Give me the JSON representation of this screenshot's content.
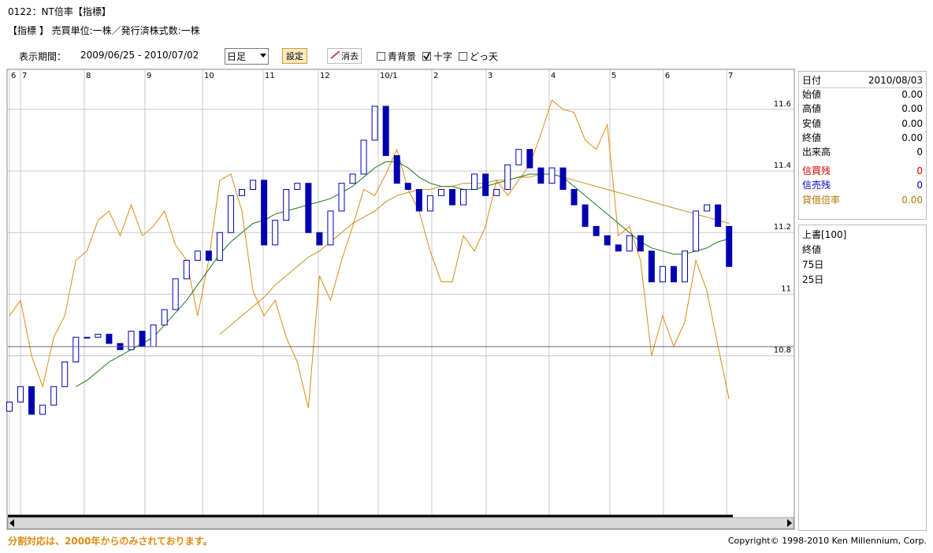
{
  "header": {
    "title": "0122：NT倍率【指標】",
    "info": "【指標 】 売買単位:一株／発行済株式数:一株"
  },
  "toolbar": {
    "period_label": "表示期間：",
    "period": "2009/06/25 - 2010/07/02",
    "interval": "日足",
    "set_button": "設定",
    "clear_button": "消去",
    "options": [
      {
        "label": "青背景",
        "checked": false
      },
      {
        "label": "十字",
        "checked": true
      },
      {
        "label": "どっ天",
        "checked": false
      }
    ]
  },
  "chart_data": {
    "type": "candlestick",
    "xlim": [
      -0.14,
      70.82
    ],
    "xticks": [
      {
        "value": 0,
        "label": "6"
      },
      {
        "value": 1,
        "label": "7"
      },
      {
        "value": 6.76,
        "label": "8"
      },
      {
        "value": 12.24,
        "label": "9"
      },
      {
        "value": 17.44,
        "label": "10"
      },
      {
        "value": 22.92,
        "label": "11"
      },
      {
        "value": 27.9,
        "label": "12"
      },
      {
        "value": 33.31,
        "label": "10/1"
      },
      {
        "value": 38.15,
        "label": "2"
      },
      {
        "value": 43.06,
        "label": "3"
      },
      {
        "value": 48.75,
        "label": "4"
      },
      {
        "value": 54.23,
        "label": "5"
      },
      {
        "value": 59.07,
        "label": "6"
      },
      {
        "value": 64.77,
        "label": "7"
      }
    ],
    "ylim": [
      10.28,
      11.73
    ],
    "yticks": [
      10.8,
      11,
      11.2,
      11.4,
      11.6
    ],
    "grid": true,
    "candles": {
      "name": "終値",
      "up_color": "#ffffff",
      "down_color": "#0000b0",
      "edge_color": "#0000b0",
      "open": [
        10.62,
        10.65,
        10.7,
        10.61,
        10.64,
        10.7,
        10.78,
        10.86,
        10.86,
        10.87,
        10.84,
        10.82,
        10.88,
        10.83,
        10.9,
        10.95,
        11.05,
        11.11,
        11.14,
        11.11,
        11.2,
        11.32,
        11.34,
        11.37,
        11.16,
        11.24,
        11.34,
        11.36,
        11.2,
        11.16,
        11.27,
        11.36,
        11.39,
        11.5,
        11.61,
        11.45,
        11.36,
        11.34,
        11.27,
        11.32,
        11.34,
        11.29,
        11.34,
        11.39,
        11.32,
        11.34,
        11.42,
        11.47,
        11.41,
        11.36,
        11.41,
        11.34,
        11.29,
        11.22,
        11.19,
        11.16,
        11.14,
        11.19,
        11.14,
        11.04,
        11.09,
        11.04,
        11.14,
        11.27,
        11.29,
        11.22
      ],
      "close": [
        10.65,
        10.7,
        10.61,
        10.64,
        10.7,
        10.78,
        10.86,
        10.86,
        10.87,
        10.84,
        10.82,
        10.88,
        10.83,
        10.9,
        10.95,
        11.05,
        11.11,
        11.14,
        11.11,
        11.2,
        11.32,
        11.34,
        11.37,
        11.16,
        11.24,
        11.34,
        11.36,
        11.2,
        11.16,
        11.27,
        11.36,
        11.39,
        11.5,
        11.61,
        11.45,
        11.36,
        11.34,
        11.27,
        11.32,
        11.34,
        11.29,
        11.34,
        11.39,
        11.32,
        11.34,
        11.42,
        11.47,
        11.41,
        11.36,
        11.41,
        11.34,
        11.29,
        11.22,
        11.19,
        11.16,
        11.14,
        11.19,
        11.14,
        11.04,
        11.09,
        11.04,
        11.14,
        11.27,
        11.29,
        11.22,
        11.09
      ]
    },
    "series": [
      {
        "name": "上書[100]",
        "color": "#e08a10",
        "values": [
          10.93,
          10.98,
          10.8,
          10.7,
          10.86,
          10.93,
          11.11,
          11.14,
          11.24,
          11.27,
          11.19,
          11.29,
          11.19,
          11.22,
          11.27,
          11.16,
          11.11,
          10.93,
          11.11,
          11.37,
          11.39,
          11.27,
          11.01,
          10.93,
          10.98,
          10.86,
          10.78,
          10.63,
          11.06,
          10.98,
          11.11,
          11.22,
          11.34,
          11.32,
          11.39,
          11.47,
          11.34,
          11.27,
          11.14,
          11.04,
          11.04,
          11.19,
          11.14,
          11.22,
          11.37,
          11.32,
          11.37,
          11.42,
          11.52,
          11.63,
          11.6,
          11.59,
          11.5,
          11.47,
          11.55,
          11.19,
          11.22,
          11.11,
          10.8,
          10.93,
          10.83,
          10.91,
          11.11,
          11.01,
          10.83,
          10.66
        ]
      },
      {
        "name": "75日",
        "color": "#c8901a",
        "values": [
          null,
          null,
          null,
          null,
          null,
          null,
          null,
          null,
          null,
          null,
          null,
          null,
          null,
          null,
          null,
          null,
          null,
          null,
          null,
          10.87,
          10.9,
          10.93,
          10.96,
          10.99,
          11.03,
          11.06,
          11.09,
          11.12,
          11.14,
          11.17,
          11.2,
          11.23,
          11.25,
          11.27,
          11.3,
          11.32,
          11.33,
          11.34,
          11.34,
          11.35,
          11.35,
          11.36,
          11.36,
          11.36,
          11.37,
          11.37,
          11.38,
          11.38,
          11.39,
          11.39,
          11.38,
          11.37,
          11.36,
          11.35,
          11.34,
          11.33,
          11.32,
          11.31,
          11.3,
          11.29,
          11.28,
          11.27,
          11.26,
          11.25,
          11.24,
          11.23
        ]
      },
      {
        "name": "25日",
        "color": "#1a7a1a",
        "values": [
          null,
          null,
          null,
          null,
          null,
          null,
          10.7,
          10.72,
          10.75,
          10.78,
          10.8,
          10.82,
          10.84,
          10.86,
          10.9,
          10.94,
          10.98,
          11.03,
          11.08,
          11.13,
          11.17,
          11.2,
          11.23,
          11.24,
          11.26,
          11.27,
          11.28,
          11.29,
          11.3,
          11.31,
          11.33,
          11.35,
          11.38,
          11.41,
          11.43,
          11.43,
          11.41,
          11.38,
          11.36,
          11.35,
          11.35,
          11.34,
          11.34,
          11.35,
          11.36,
          11.37,
          11.38,
          11.39,
          11.39,
          11.39,
          11.38,
          11.35,
          11.32,
          11.29,
          11.26,
          11.23,
          11.2,
          11.17,
          11.15,
          11.14,
          11.13,
          11.13,
          11.14,
          11.15,
          11.17,
          11.18
        ]
      }
    ]
  },
  "panel": {
    "rows": [
      [
        "日付",
        "2010/08/03"
      ],
      [
        "始値",
        "0.00"
      ],
      [
        "高値",
        "0.00"
      ],
      [
        "安値",
        "0.00"
      ],
      [
        "終値",
        "0.00"
      ],
      [
        "出来高",
        "0"
      ],
      [
        "信買残",
        "0"
      ],
      [
        "信売残",
        "0"
      ],
      [
        "貸借倍率",
        "0.00"
      ]
    ]
  },
  "footer": {
    "note": "分割対応は、2000年からのみされております。",
    "copyright": "Copyright© 1998-2010 Ken Millennium, Corp."
  }
}
